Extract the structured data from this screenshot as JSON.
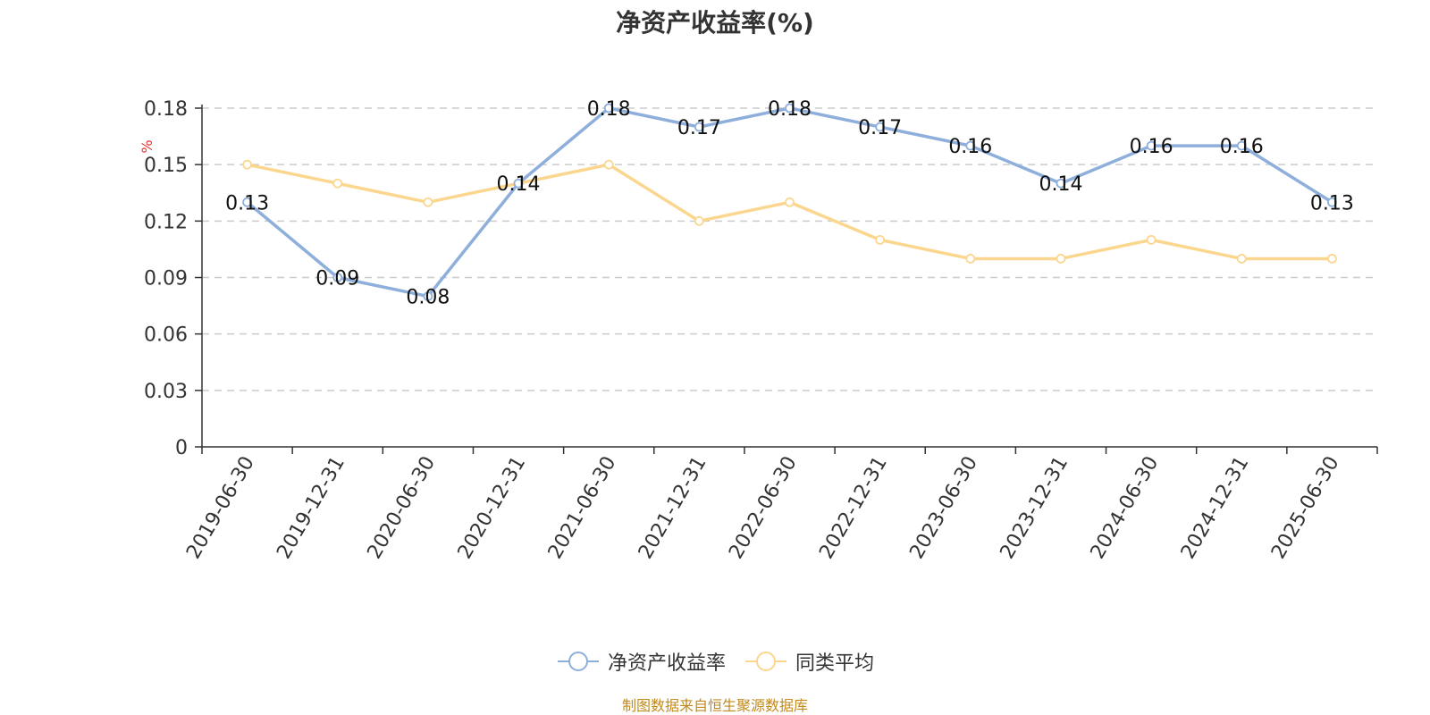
{
  "title": "净资产收益率(%)",
  "source_note": "制图数据来自恒生聚源数据库",
  "colors": {
    "series_1": "#8eaedb",
    "series_2": "#fbd68f",
    "source_note": "#c08a1e",
    "unit_label": "#e3342f",
    "axis": "#333333",
    "grid": "#cccccc"
  },
  "chart_data": {
    "type": "line",
    "title": "净资产收益率(%)",
    "ylabel": "%",
    "ylim": [
      0,
      0.18
    ],
    "yticks": [
      0,
      0.03,
      0.06,
      0.09,
      0.12,
      0.15,
      0.18
    ],
    "ytick_labels": [
      "0",
      "0.03",
      "0.06",
      "0.09",
      "0.12",
      "0.15",
      "0.18"
    ],
    "grid": "horizontal dashed",
    "legend_position": "bottom-center",
    "categories": [
      "2019-06-30",
      "2019-12-31",
      "2020-06-30",
      "2020-12-31",
      "2021-06-30",
      "2021-12-31",
      "2022-06-30",
      "2022-12-31",
      "2023-06-30",
      "2023-12-31",
      "2024-06-30",
      "2024-12-31",
      "2025-06-30"
    ],
    "series": [
      {
        "name": "净资产收益率",
        "values": [
          0.13,
          0.09,
          0.08,
          0.14,
          0.18,
          0.17,
          0.18,
          0.17,
          0.16,
          0.14,
          0.16,
          0.16,
          0.13
        ],
        "labels": [
          "0.13",
          "0.09",
          "0.08",
          "0.14",
          "0.18",
          "0.17",
          "0.18",
          "0.17",
          "0.16",
          "0.14",
          "0.16",
          "0.16",
          "0.13"
        ]
      },
      {
        "name": "同类平均",
        "values": [
          0.15,
          0.14,
          0.13,
          0.14,
          0.15,
          0.12,
          0.13,
          0.11,
          0.1,
          0.1,
          0.11,
          0.1,
          0.1
        ]
      }
    ]
  }
}
